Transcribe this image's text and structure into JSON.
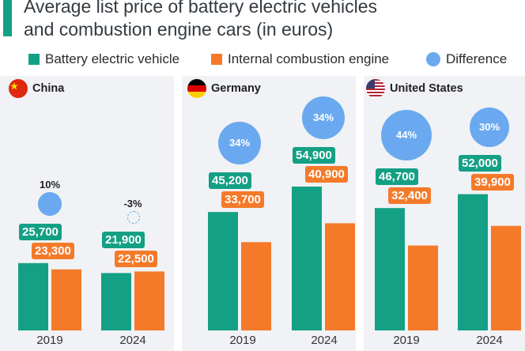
{
  "title_lines": [
    "Average list price of battery electric vehicles",
    "and combustion engine cars (in euros)"
  ],
  "legend": [
    {
      "label": "Battery electric vehicle",
      "color": "#14a085",
      "shape": "square"
    },
    {
      "label": "Internal combustion engine",
      "color": "#f47a2a",
      "shape": "square"
    },
    {
      "label": "Difference",
      "color": "#6aa9ef",
      "shape": "circle"
    }
  ],
  "colors": {
    "bev": "#14a085",
    "ice": "#f47a2a",
    "difference": "#6aa9ef",
    "panel_bg": "#f0f2f5"
  },
  "panels": [
    {
      "country": "China",
      "flag_icon": "china-flag-icon"
    },
    {
      "country": "Germany",
      "flag_icon": "germany-flag-icon"
    },
    {
      "country": "United States",
      "flag_icon": "usa-flag-icon"
    }
  ],
  "chart_data": {
    "type": "bar",
    "title": "Average list price of battery electric vehicles and combustion engine cars (in euros)",
    "categories": [
      "2019",
      "2024"
    ],
    "groups": [
      {
        "country": "China",
        "series": [
          {
            "name": "Battery electric vehicle",
            "values": [
              25700,
              21900
            ]
          },
          {
            "name": "Internal combustion engine",
            "values": [
              23300,
              22500
            ]
          }
        ],
        "difference": [
          "10%",
          "-3%"
        ]
      },
      {
        "country": "Germany",
        "series": [
          {
            "name": "Battery electric vehicle",
            "values": [
              45200,
              54900
            ]
          },
          {
            "name": "Internal combustion engine",
            "values": [
              33700,
              40900
            ]
          }
        ],
        "difference": [
          "34%",
          "34%"
        ]
      },
      {
        "country": "United States",
        "series": [
          {
            "name": "Battery electric vehicle",
            "values": [
              46700,
              52000
            ]
          },
          {
            "name": "Internal combustion engine",
            "values": [
              32400,
              39900
            ]
          }
        ],
        "difference": [
          "44%",
          "30%"
        ]
      }
    ],
    "value_labels": {
      "bev": [
        [
          "25,700",
          "21,900"
        ],
        [
          "45,200",
          "54,900"
        ],
        [
          "46,700",
          "52,000"
        ]
      ],
      "ice": [
        [
          "23,300",
          "22,500"
        ],
        [
          "33,700",
          "40,900"
        ],
        [
          "32,400",
          "39,900"
        ]
      ]
    },
    "ylim": [
      0,
      65000
    ],
    "grid": false,
    "legend_position": "top"
  }
}
